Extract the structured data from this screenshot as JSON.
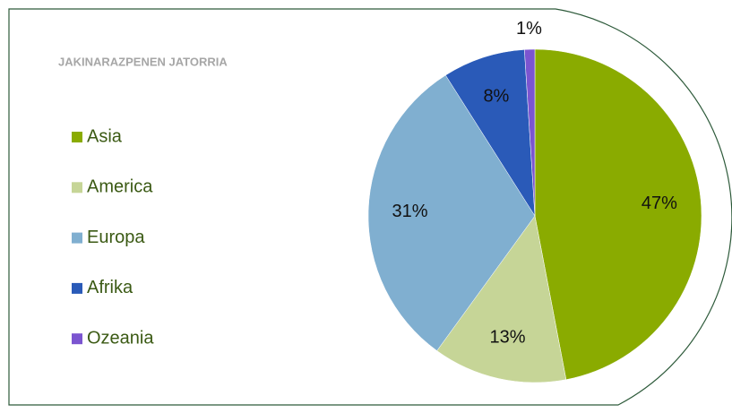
{
  "chart_data": {
    "type": "pie",
    "title": "JAKINARAZPENEN JATORRIA",
    "categories": [
      "Asia",
      "America",
      "Europa",
      "Afrika",
      "Ozeania"
    ],
    "values": [
      47,
      13,
      31,
      8,
      1
    ],
    "value_labels": [
      "47%",
      "13%",
      "31%",
      "8%",
      "1%"
    ],
    "colors": [
      "#8aab00",
      "#c6d597",
      "#80afd0",
      "#2a5ab8",
      "#7b55d0"
    ],
    "legend": "left"
  }
}
